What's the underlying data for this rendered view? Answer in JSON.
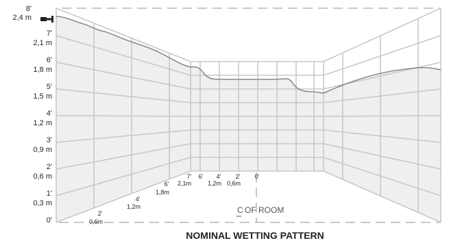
{
  "caption": "NOMINAL WETTING PATTERN",
  "room_label": "OF ROOM",
  "centerline_symbol": "C",
  "colors": {
    "grid": "#c8c8c8",
    "wetted_fill": "#efefef",
    "wetting_curve": "#8a8a8a",
    "dashed_frame": "#c8c8c8",
    "text": "#231f20",
    "sprinkler_icon": "#231f20"
  },
  "icons": {
    "sprinkler": "sprinkler-icon"
  },
  "wall_height_scale": [
    {
      "ft": "8'",
      "m": "2,4 m"
    },
    {
      "ft": "7'",
      "m": "2,1 m"
    },
    {
      "ft": "6'",
      "m": "1,8 m"
    },
    {
      "ft": "5'",
      "m": "1,5 m"
    },
    {
      "ft": "4'",
      "m": "1,2 m"
    },
    {
      "ft": "3'",
      "m": "0,9 m"
    },
    {
      "ft": "2'",
      "m": "0,6 m"
    },
    {
      "ft": "1'",
      "m": "0,3 m"
    },
    {
      "ft": "0'",
      "m": ""
    }
  ],
  "floor_scale_left": [
    {
      "ft": "2'",
      "m": "0,6m"
    },
    {
      "ft": "4'",
      "m": "1,2m"
    },
    {
      "ft": "6'",
      "m": "1,8m"
    },
    {
      "ft": "7'",
      "m": "2,1m"
    }
  ],
  "floor_scale_back": [
    {
      "ft": "6'",
      "m": ""
    },
    {
      "ft": "4'",
      "m": "1,2m"
    },
    {
      "ft": "2'",
      "m": "0,6m"
    },
    {
      "ft": "0'",
      "m": ""
    }
  ]
}
